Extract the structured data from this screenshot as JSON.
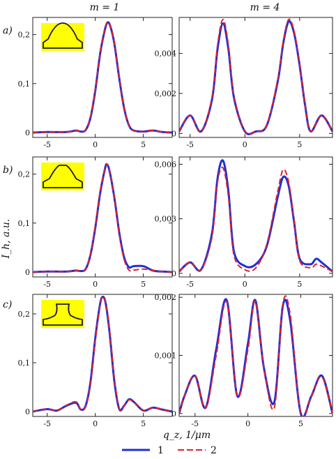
{
  "figure": {
    "column_titles": [
      "m = 1",
      "m = 4"
    ],
    "row_labels": [
      "a)",
      "b)",
      "c)"
    ],
    "ylabel": "I_h, a.u.",
    "xlabel": "q_z, 1/μm",
    "legend": [
      "1",
      "2"
    ],
    "colors": {
      "series1": "#1f2fd6",
      "series2": "#e0202a",
      "inset_bg": "#ffff00",
      "inset_line": "#1a1a2e"
    }
  },
  "chart_data": [
    {
      "type": "line",
      "row": "a)",
      "column": "m = 1",
      "xlim": [
        -6.5,
        8
      ],
      "ylim": [
        -0.01,
        0.235
      ],
      "xticks": [
        -5,
        0,
        5
      ],
      "yticks": [
        0,
        0.1,
        0.2
      ],
      "ytick_labels": [
        "0",
        "0,1",
        "0,2"
      ],
      "inset_icon": "bell-shaped-profile-icon",
      "series": [
        {
          "name": "1",
          "x": [
            -6.5,
            -5,
            -3,
            -2,
            -1.5,
            -1,
            -0.5,
            0,
            0.5,
            1,
            1.3,
            1.6,
            2,
            2.5,
            3,
            3.5,
            4,
            5,
            6,
            7,
            8
          ],
          "y": [
            0,
            0.001,
            0.001,
            0.004,
            0.002,
            0.005,
            0.03,
            0.085,
            0.16,
            0.21,
            0.225,
            0.215,
            0.18,
            0.11,
            0.05,
            0.015,
            0.004,
            0.002,
            0.004,
            0.001,
            0
          ]
        },
        {
          "name": "2",
          "x": [
            -6.5,
            -5,
            -3,
            -2,
            -1.5,
            -1,
            -0.5,
            0,
            0.5,
            1,
            1.3,
            1.6,
            2,
            2.5,
            3,
            3.5,
            4,
            5,
            6,
            7,
            8
          ],
          "y": [
            0,
            0.001,
            0.001,
            0.004,
            0.002,
            0.005,
            0.031,
            0.087,
            0.162,
            0.212,
            0.226,
            0.216,
            0.181,
            0.111,
            0.051,
            0.015,
            0.004,
            0.002,
            0.004,
            0.001,
            0
          ]
        }
      ]
    },
    {
      "type": "line",
      "row": "a)",
      "column": "m = 4",
      "xlim": [
        -6,
        8
      ],
      "ylim": [
        -0.0002,
        0.0058
      ],
      "xticks": [
        -5,
        0,
        5
      ],
      "yticks": [
        0,
        0.002,
        0.004
      ],
      "ytick_labels": [
        "0",
        "0,002",
        "0,004"
      ],
      "series": [
        {
          "name": "1",
          "x": [
            -6,
            -5,
            -4,
            -3,
            -2.5,
            -2,
            -1.5,
            -1,
            0,
            1,
            2,
            3,
            3.5,
            4,
            4.5,
            5,
            5.5,
            6,
            7,
            8
          ],
          "y": [
            0.0001,
            0.0009,
            0.0001,
            0.0017,
            0.0042,
            0.0055,
            0.0042,
            0.0018,
            0.0001,
            0.0001,
            0.0004,
            0.0026,
            0.0045,
            0.0056,
            0.005,
            0.0034,
            0.0014,
            0.0001,
            0.0009,
            0.0001
          ]
        },
        {
          "name": "2",
          "x": [
            -6,
            -5,
            -4,
            -3,
            -2.5,
            -2,
            -1.5,
            -1,
            0,
            1,
            2,
            3,
            3.5,
            4,
            4.5,
            5,
            5.5,
            6,
            7,
            8
          ],
          "y": [
            0.0001,
            0.0009,
            0.0001,
            0.0018,
            0.0044,
            0.0057,
            0.0044,
            0.0019,
            0.0001,
            0.0001,
            0.0004,
            0.0027,
            0.0046,
            0.0057,
            0.0051,
            0.0035,
            0.0014,
            0.0001,
            0.0009,
            0.0001
          ]
        }
      ]
    },
    {
      "type": "line",
      "row": "b)",
      "column": "m = 1",
      "xlim": [
        -6.5,
        8
      ],
      "ylim": [
        -0.01,
        0.235
      ],
      "xticks": [
        -5,
        0,
        5
      ],
      "yticks": [
        0,
        0.1,
        0.2
      ],
      "ytick_labels": [
        "0",
        "0,1",
        "0,2"
      ],
      "inset_icon": "flat-top-profile-icon",
      "series": [
        {
          "name": "1",
          "x": [
            -6.5,
            -5,
            -3,
            -2,
            -1.5,
            -1,
            -0.5,
            0,
            0.5,
            1,
            1.2,
            1.5,
            2,
            2.5,
            3,
            3.5,
            4,
            5,
            6,
            7,
            8
          ],
          "y": [
            0,
            0.001,
            0.001,
            0.003,
            0.002,
            0.006,
            0.035,
            0.09,
            0.16,
            0.21,
            0.22,
            0.205,
            0.15,
            0.08,
            0.03,
            0.01,
            0.012,
            0.012,
            0.003,
            0.001,
            0
          ]
        },
        {
          "name": "2",
          "x": [
            -6.5,
            -5,
            -3,
            -2,
            -1.5,
            -1,
            -0.5,
            0,
            0.5,
            1,
            1.2,
            1.5,
            2,
            2.5,
            3,
            3.5,
            4,
            5,
            6,
            7,
            8
          ],
          "y": [
            0,
            0.001,
            0.001,
            0.003,
            0.002,
            0.006,
            0.037,
            0.094,
            0.164,
            0.212,
            0.221,
            0.207,
            0.15,
            0.076,
            0.026,
            0.004,
            0.004,
            0.006,
            0.003,
            0.001,
            0
          ]
        }
      ]
    },
    {
      "type": "line",
      "row": "b)",
      "column": "m = 4",
      "xlim": [
        -6,
        8
      ],
      "ylim": [
        -0.0002,
        0.0064
      ],
      "xticks": [
        -5,
        0,
        5
      ],
      "yticks": [
        0,
        0.003,
        0.006
      ],
      "ytick_labels": [
        "0",
        "0,003",
        "0,006"
      ],
      "series": [
        {
          "name": "1",
          "x": [
            -6,
            -5,
            -4,
            -3,
            -2.5,
            -2,
            -1.5,
            -1,
            0,
            1,
            2,
            3,
            3.5,
            4,
            4.5,
            5,
            6,
            6.5,
            7,
            8
          ],
          "y": [
            0.0001,
            0.0006,
            0.0002,
            0.0022,
            0.0052,
            0.0062,
            0.0045,
            0.0012,
            0.0004,
            0.0005,
            0.0015,
            0.0042,
            0.0053,
            0.0048,
            0.0028,
            0.0008,
            0.0005,
            0.0008,
            0.0006,
            0.0001
          ]
        },
        {
          "name": "2",
          "x": [
            -6,
            -5,
            -4,
            -3,
            -2.5,
            -2,
            -1.5,
            -1,
            0,
            1,
            2,
            3,
            3.5,
            4,
            4.5,
            5,
            6,
            6.5,
            7,
            8
          ],
          "y": [
            0.0001,
            0.0006,
            0.0002,
            0.002,
            0.005,
            0.0058,
            0.0042,
            0.001,
            0.0002,
            0.0003,
            0.0016,
            0.0045,
            0.0057,
            0.005,
            0.0029,
            0.0007,
            0.0003,
            0.0005,
            0.0004,
            0.0001
          ]
        }
      ]
    },
    {
      "type": "line",
      "row": "c)",
      "column": "m = 1",
      "xlim": [
        -6.5,
        8
      ],
      "ylim": [
        -0.01,
        0.24
      ],
      "xticks": [
        -5,
        0,
        5
      ],
      "yticks": [
        0,
        0.1,
        0.2
      ],
      "ytick_labels": [
        "0",
        "0,1",
        "0,2"
      ],
      "inset_icon": "concave-profile-icon",
      "series": [
        {
          "name": "1",
          "x": [
            -6.5,
            -5,
            -4,
            -3,
            -2,
            -1.5,
            -1,
            -0.5,
            0,
            0.5,
            0.8,
            1.1,
            1.5,
            2,
            2.5,
            3,
            3.5,
            4,
            5,
            6,
            7,
            8
          ],
          "y": [
            0,
            0.005,
            0.002,
            0.012,
            0.018,
            0.004,
            0.012,
            0.06,
            0.15,
            0.22,
            0.235,
            0.22,
            0.16,
            0.06,
            0.005,
            0.012,
            0.025,
            0.02,
            0.002,
            0.008,
            0.004,
            0
          ]
        },
        {
          "name": "2",
          "x": [
            -6.5,
            -5,
            -4,
            -3,
            -2,
            -1.5,
            -1,
            -0.5,
            0,
            0.5,
            0.8,
            1.1,
            1.5,
            2,
            2.5,
            3,
            3.5,
            4,
            5,
            6,
            7,
            8
          ],
          "y": [
            0,
            0.005,
            0.002,
            0.013,
            0.02,
            0.004,
            0.01,
            0.055,
            0.145,
            0.218,
            0.235,
            0.222,
            0.165,
            0.065,
            0.006,
            0.012,
            0.024,
            0.019,
            0.002,
            0.008,
            0.004,
            0
          ]
        }
      ]
    },
    {
      "type": "line",
      "row": "c)",
      "column": "m = 4",
      "xlim": [
        -6.5,
        8
      ],
      "ylim": [
        -5e-05,
        0.00205
      ],
      "xticks": [
        -5,
        0,
        5
      ],
      "yticks": [
        0,
        0.001,
        0.002
      ],
      "ytick_labels": [
        "0",
        "0,001",
        "0,002"
      ],
      "series": [
        {
          "name": "1",
          "x": [
            -6.5,
            -6,
            -5,
            -4,
            -3,
            -2,
            -1,
            0,
            0.7,
            1.5,
            2.5,
            3.3,
            4,
            5,
            6,
            7,
            8
          ],
          "y": [
            0,
            0.0003,
            0.00065,
            0.0001,
            0.0011,
            0.00195,
            0.0003,
            0.0012,
            0.00195,
            0.0008,
            0.0002,
            0.00185,
            0.0016,
            0,
            0.0003,
            0.00065,
            0
          ]
        },
        {
          "name": "2",
          "x": [
            -6.5,
            -6,
            -5,
            -4,
            -3,
            -2,
            -1,
            0,
            0.7,
            1.5,
            2.5,
            3.3,
            4,
            5,
            6,
            7,
            8
          ],
          "y": [
            0,
            0.0003,
            0.00065,
            0.0001,
            0.001,
            0.00192,
            0.0003,
            0.0011,
            0.00193,
            0.0008,
            0.0001,
            0.00188,
            0.0017,
            0,
            0.0003,
            0.00063,
            0
          ]
        }
      ]
    }
  ]
}
